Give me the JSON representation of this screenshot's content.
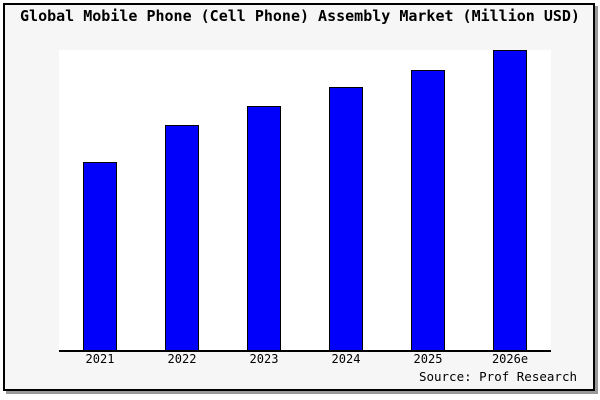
{
  "header": {
    "title": "Global Mobile Phone (Cell Phone) Assembly Market (Million USD)"
  },
  "footer": {
    "source": "Source: Prof Research"
  },
  "colors": {
    "bar_fill": "#0000fb",
    "bar_edge": "#000000",
    "plot_background": "#ffffff",
    "canvas_background": "#f6f6f6",
    "frame_border": "#000000",
    "frame_shadow": "#999999",
    "axis_line": "#000000",
    "text": "#000000"
  },
  "chart_data": {
    "type": "bar",
    "title": "Global Mobile Phone (Cell Phone) Assembly Market (Million USD)",
    "categories": [
      "2021",
      "2022",
      "2023",
      "2024",
      "2025",
      "2026e"
    ],
    "values": [
      0.627,
      0.75,
      0.813,
      0.877,
      0.933,
      1.0
    ],
    "values_unit": "relative bar height (no numeric y-axis scale shown in chart)",
    "xlabel": "",
    "ylabel": "",
    "ylim": [
      0,
      1
    ],
    "grid": false,
    "legend": false,
    "y_axis_ticks_visible": false,
    "annotation": "Source: Prof Research"
  }
}
